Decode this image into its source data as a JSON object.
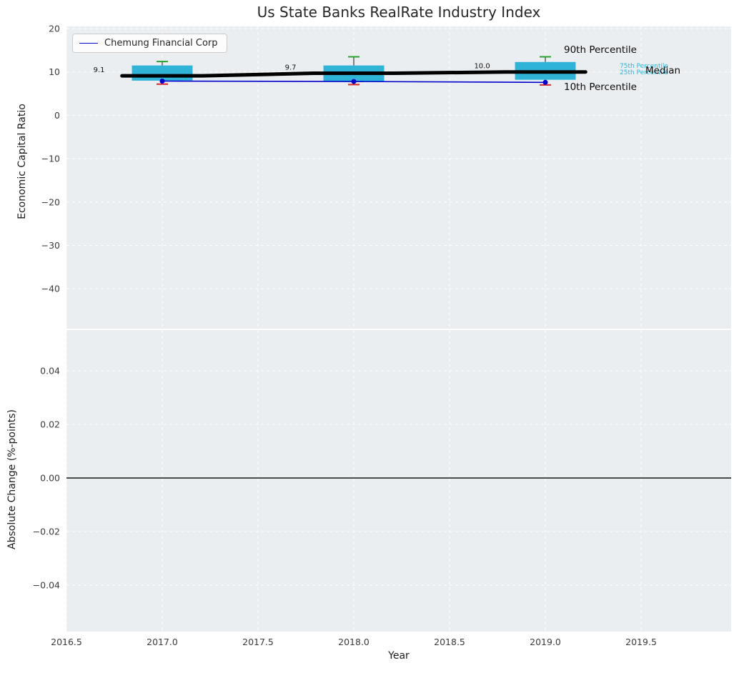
{
  "title": "Us State Banks RealRate Industry Index",
  "legend": {
    "label": "Chemung Financial Corp"
  },
  "annotations": {
    "p90": "90th Percentile",
    "p75": "75th Percentile",
    "p25": "25th Percentile",
    "median": "Median",
    "p10": "10th Percentile"
  },
  "colors": {
    "plot_bg": "#ebeef1",
    "grid": "#ffffff",
    "box": "#2fb4d8",
    "median_line": "#000000",
    "company_line": "#0000cc",
    "cap_high": "#2ca02c",
    "cap_low": "#d62728",
    "whisker": "#3a3a3a",
    "tick_text": "#3b3b3b",
    "zero_line": "#000000"
  },
  "chart_data": [
    {
      "type": "boxplot+line",
      "title": "Us State Banks RealRate Industry Index",
      "ylabel": "Economic Capital Ratio",
      "xlabel": "",
      "x": [
        2017,
        2018,
        2019
      ],
      "xlim": [
        2016.5,
        2019.97
      ],
      "ylim": [
        -49.2,
        20.5
      ],
      "yticks": [
        20,
        10,
        0,
        -10,
        -20,
        -30,
        -40
      ],
      "ytick_labels": [
        "20",
        "10",
        "0",
        "−10",
        "−20",
        "−30",
        "−40"
      ],
      "xticks": [
        2016.5,
        2017.0,
        2017.5,
        2018.0,
        2018.5,
        2019.0,
        2019.5
      ],
      "grid": "on",
      "legend_position": "upper left",
      "p90": [
        12.4,
        13.5,
        13.5
      ],
      "p75": [
        11.5,
        11.5,
        12.3
      ],
      "median": [
        9.1,
        9.7,
        10.0
      ],
      "median_labels": [
        "9.1",
        "9.7",
        "10.0"
      ],
      "p25": [
        8.0,
        7.9,
        8.2
      ],
      "p10": [
        7.2,
        7.1,
        7.0
      ],
      "box_width": 0.317,
      "series": [
        {
          "name": "Chemung Financial Corp",
          "values": [
            7.9,
            7.8,
            7.6
          ]
        }
      ]
    },
    {
      "type": "line",
      "ylabel": "Absolute Change (%-points)",
      "xlabel": "Year",
      "xlim": [
        2016.5,
        2019.97
      ],
      "ylim": [
        -0.0573,
        0.0552
      ],
      "yticks": [
        0.04,
        0.02,
        0.0,
        -0.02,
        -0.04
      ],
      "ytick_labels": [
        "0.04",
        "0.02",
        "0.00",
        "−0.02",
        "−0.04"
      ],
      "xticks": [
        2016.5,
        2017.0,
        2017.5,
        2018.0,
        2018.5,
        2019.0,
        2019.5
      ],
      "xtick_labels": [
        "2016.5",
        "2017.0",
        "2017.5",
        "2018.0",
        "2018.5",
        "2019.0",
        "2019.5"
      ],
      "grid": "on",
      "zero_line_y": 0.0,
      "series": []
    }
  ]
}
